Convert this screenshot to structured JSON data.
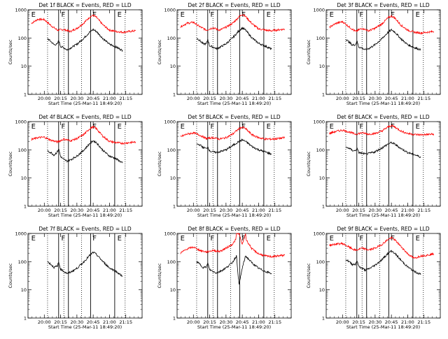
{
  "chart_data": {
    "type": "line",
    "grid": false,
    "y_scale": "log",
    "ylim": [
      1,
      1000
    ],
    "y_ticks": [
      1,
      10,
      100,
      1000
    ],
    "y_tick_labels": [
      "1",
      "10",
      "100",
      "1000"
    ],
    "x_ticks": [
      20.0,
      20.25,
      20.5,
      20.75,
      21.0,
      21.25
    ],
    "x_tick_labels": [
      "20:00",
      "20:15",
      "20:30",
      "20:45",
      "21:00",
      "21:15"
    ],
    "xlim": [
      19.75,
      21.5
    ],
    "ylabel": "Counts/sec",
    "xlabel": "Start Time (25-Mar-11 18:49:20)",
    "line_colors": {
      "events": "#000000",
      "lld": "#ff0000"
    },
    "event_markers": {
      "solid": [
        20.22,
        20.37,
        20.71,
        21.08
      ],
      "dotted": [
        20.05,
        20.3,
        20.57,
        21.24
      ],
      "letters": [
        {
          "text": "E",
          "x": 19.8
        },
        {
          "text": "F",
          "x": 20.26
        },
        {
          "text": "F",
          "x": 20.74
        },
        {
          "text": "E",
          "x": 21.12
        }
      ]
    },
    "panels": [
      {
        "title": "Det 1f BLACK = Events, RED = LLD",
        "series": [
          {
            "color": "red",
            "x": [
              19.8,
              19.9,
              20.0,
              20.1,
              20.2,
              20.3,
              20.4,
              20.5,
              20.6,
              20.7,
              20.75,
              20.8,
              20.9,
              21.0,
              21.1,
              21.2,
              21.3,
              21.4
            ],
            "values": [
              330,
              460,
              450,
              280,
              190,
              200,
              170,
              220,
              330,
              560,
              640,
              540,
              290,
              190,
              170,
              160,
              170,
              180
            ]
          },
          {
            "color": "black",
            "x": [
              20.05,
              20.1,
              20.15,
              20.2,
              20.22,
              20.25,
              20.3,
              20.35,
              20.4,
              20.5,
              20.6,
              20.7,
              20.75,
              20.8,
              20.9,
              21.0,
              21.1,
              21.2
            ],
            "values": [
              95,
              75,
              58,
              60,
              82,
              50,
              45,
              38,
              44,
              60,
              95,
              165,
              200,
              170,
              95,
              60,
              48,
              36
            ]
          }
        ]
      },
      {
        "title": "Det 2f BLACK = Events, RED = LLD",
        "series": [
          {
            "color": "red",
            "x": [
              19.8,
              19.9,
              20.0,
              20.1,
              20.2,
              20.3,
              20.4,
              20.5,
              20.6,
              20.7,
              20.75,
              20.8,
              20.9,
              21.0,
              21.1,
              21.2,
              21.3,
              21.4
            ],
            "values": [
              250,
              330,
              360,
              250,
              190,
              230,
              190,
              240,
              330,
              560,
              700,
              580,
              320,
              210,
              190,
              180,
              195,
              205
            ]
          },
          {
            "color": "black",
            "x": [
              20.05,
              20.1,
              20.15,
              20.2,
              20.22,
              20.25,
              20.3,
              20.35,
              20.4,
              20.5,
              20.6,
              20.7,
              20.75,
              20.8,
              20.9,
              21.0,
              21.1,
              21.2
            ],
            "values": [
              100,
              80,
              62,
              62,
              90,
              52,
              48,
              42,
              46,
              62,
              100,
              180,
              230,
              190,
              100,
              65,
              52,
              40
            ]
          }
        ]
      },
      {
        "title": "Det 3f BLACK = Events, RED = LLD",
        "series": [
          {
            "color": "red",
            "x": [
              19.8,
              19.9,
              20.0,
              20.1,
              20.2,
              20.3,
              20.4,
              20.5,
              20.6,
              20.7,
              20.75,
              20.8,
              20.9,
              21.0,
              21.1,
              21.2,
              21.3,
              21.4
            ],
            "values": [
              240,
              330,
              380,
              250,
              170,
              220,
              180,
              220,
              310,
              520,
              600,
              520,
              280,
              190,
              160,
              150,
              160,
              170
            ]
          },
          {
            "color": "black",
            "x": [
              20.05,
              20.1,
              20.15,
              20.2,
              20.22,
              20.25,
              20.3,
              20.35,
              20.4,
              20.5,
              20.6,
              20.7,
              20.75,
              20.8,
              20.9,
              21.0,
              21.1,
              21.2
            ],
            "values": [
              92,
              72,
              56,
              58,
              80,
              48,
              44,
              38,
              42,
              58,
              92,
              160,
              195,
              165,
              92,
              58,
              46,
              38
            ]
          }
        ]
      },
      {
        "title": "Det 4f BLACK = Events, RED = LLD",
        "series": [
          {
            "color": "red",
            "x": [
              19.8,
              19.9,
              20.0,
              20.1,
              20.2,
              20.3,
              20.4,
              20.5,
              20.6,
              20.7,
              20.75,
              20.8,
              20.9,
              21.0,
              21.1,
              21.2,
              21.3,
              21.4
            ],
            "values": [
              230,
              270,
              280,
              220,
              190,
              240,
              210,
              250,
              340,
              570,
              650,
              560,
              300,
              200,
              180,
              170,
              180,
              190
            ]
          },
          {
            "color": "black",
            "x": [
              20.05,
              20.1,
              20.15,
              20.2,
              20.22,
              20.25,
              20.3,
              20.35,
              20.4,
              20.5,
              20.6,
              20.7,
              20.75,
              20.8,
              20.9,
              21.0,
              21.1,
              21.2
            ],
            "values": [
              90,
              80,
              65,
              85,
              110,
              58,
              45,
              40,
              44,
              60,
              95,
              170,
              210,
              180,
              95,
              60,
              48,
              34
            ]
          }
        ]
      },
      {
        "title": "Det 5f BLACK = Events, RED = LLD",
        "series": [
          {
            "color": "red",
            "x": [
              19.8,
              19.9,
              20.0,
              20.1,
              20.2,
              20.3,
              20.4,
              20.5,
              20.6,
              20.7,
              20.75,
              20.8,
              20.9,
              21.0,
              21.1,
              21.2,
              21.3,
              21.4
            ],
            "values": [
              290,
              360,
              400,
              330,
              250,
              270,
              240,
              270,
              360,
              560,
              640,
              560,
              340,
              270,
              240,
              240,
              250,
              270
            ]
          },
          {
            "color": "black",
            "x": [
              20.05,
              20.1,
              20.15,
              20.2,
              20.22,
              20.25,
              20.3,
              20.35,
              20.4,
              20.5,
              20.6,
              20.7,
              20.75,
              20.8,
              20.9,
              21.0,
              21.1,
              21.2
            ],
            "values": [
              160,
              150,
              120,
              110,
              130,
              90,
              85,
              80,
              85,
              100,
              140,
              200,
              225,
              200,
              130,
              100,
              85,
              70
            ]
          }
        ]
      },
      {
        "title": "Det 6f BLACK = Events, RED = LLD",
        "series": [
          {
            "color": "red",
            "x": [
              19.8,
              19.9,
              20.0,
              20.1,
              20.2,
              20.3,
              20.4,
              20.5,
              20.6,
              20.7,
              20.75,
              20.8,
              20.9,
              21.0,
              21.1,
              21.2,
              21.3,
              21.4
            ],
            "values": [
              380,
              450,
              500,
              430,
              360,
              400,
              360,
              380,
              460,
              650,
              720,
              650,
              460,
              380,
              350,
              340,
              350,
              360
            ]
          },
          {
            "color": "black",
            "x": [
              20.05,
              20.1,
              20.15,
              20.2,
              20.22,
              20.25,
              20.3,
              20.35,
              20.4,
              20.5,
              20.6,
              20.7,
              20.75,
              20.8,
              20.9,
              21.0,
              21.1,
              21.2
            ],
            "values": [
              120,
              115,
              95,
              92,
              115,
              80,
              75,
              70,
              74,
              85,
              115,
              160,
              180,
              160,
              110,
              80,
              68,
              55
            ]
          }
        ]
      },
      {
        "title": "Det 7f BLACK = Events, RED = LLD",
        "series": [
          {
            "color": "black",
            "x": [
              20.05,
              20.1,
              20.15,
              20.2,
              20.22,
              20.25,
              20.3,
              20.35,
              20.4,
              20.5,
              20.6,
              20.7,
              20.75,
              20.8,
              20.9,
              21.0,
              21.1,
              21.2
            ],
            "values": [
              100,
              80,
              62,
              70,
              95,
              55,
              45,
              38,
              42,
              58,
              95,
              170,
              215,
              180,
              100,
              60,
              45,
              30
            ]
          }
        ]
      },
      {
        "title": "Det 8f BLACK = Events, RED = LLD",
        "series": [
          {
            "color": "red",
            "x": [
              19.8,
              19.9,
              20.0,
              20.1,
              20.2,
              20.3,
              20.4,
              20.5,
              20.6,
              20.65,
              20.66,
              20.7,
              20.75,
              20.8,
              20.81,
              20.9,
              21.0,
              21.1,
              21.2,
              21.3,
              21.4
            ],
            "values": [
              200,
              280,
              330,
              250,
              220,
              250,
              230,
              300,
              420,
              600,
              1000,
              1000,
              400,
              1000,
              600,
              280,
              190,
              160,
              150,
              160,
              170
            ]
          },
          {
            "color": "black",
            "x": [
              20.05,
              20.1,
              20.15,
              20.2,
              20.22,
              20.25,
              20.3,
              20.35,
              20.4,
              20.5,
              20.6,
              20.66,
              20.7,
              20.75,
              20.8,
              20.9,
              21.0,
              21.1,
              21.2
            ],
            "values": [
              100,
              80,
              62,
              65,
              88,
              52,
              45,
              40,
              44,
              60,
              95,
              160,
              15,
              60,
              160,
              90,
              58,
              45,
              38
            ]
          }
        ]
      },
      {
        "title": "Det 9f BLACK = Events, RED = LLD",
        "series": [
          {
            "color": "red",
            "x": [
              19.8,
              19.9,
              20.0,
              20.1,
              20.2,
              20.3,
              20.4,
              20.5,
              20.6,
              20.7,
              20.75,
              20.8,
              20.9,
              21.0,
              21.1,
              21.2,
              21.3,
              21.4
            ],
            "values": [
              380,
              420,
              440,
              330,
              250,
              300,
              260,
              300,
              400,
              620,
              700,
              600,
              340,
              190,
              130,
              160,
              170,
              190
            ]
          },
          {
            "color": "black",
            "x": [
              20.05,
              20.1,
              20.15,
              20.2,
              20.22,
              20.25,
              20.3,
              20.35,
              20.4,
              20.5,
              20.6,
              20.7,
              20.75,
              20.8,
              20.9,
              21.0,
              21.1,
              21.2
            ],
            "values": [
              120,
              100,
              80,
              82,
              110,
              68,
              58,
              50,
              55,
              75,
              115,
              200,
              240,
              200,
              110,
              65,
              45,
              35
            ]
          }
        ]
      }
    ]
  }
}
